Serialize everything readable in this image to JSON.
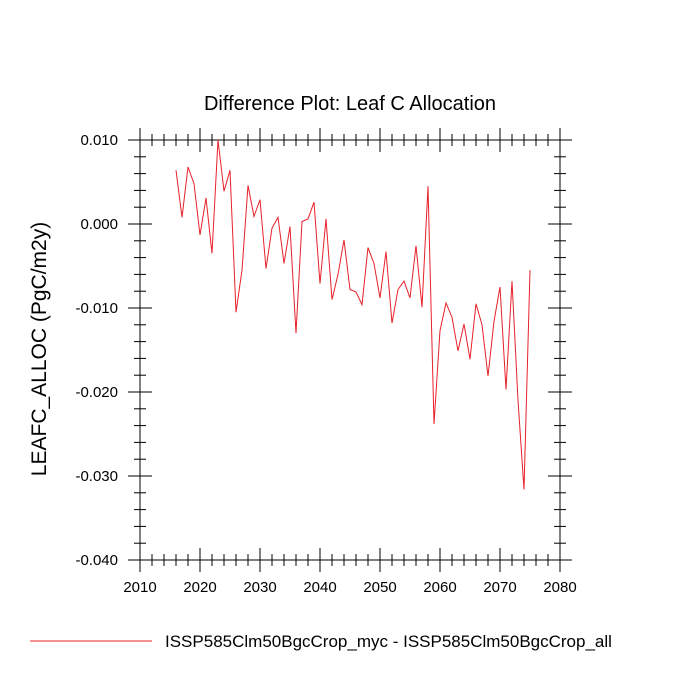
{
  "chart_data": {
    "type": "line",
    "title": "Difference Plot: Leaf C Allocation",
    "xlabel": "",
    "ylabel": "LEAFC_ALLOC  (PgC/m2y)",
    "xlim": [
      2010,
      2080
    ],
    "ylim": [
      -0.04,
      0.01
    ],
    "x_ticks": [
      2010,
      2020,
      2030,
      2040,
      2050,
      2060,
      2070,
      2080
    ],
    "x_tick_labels": [
      "2010",
      "2020",
      "2030",
      "2040",
      "2050",
      "2060",
      "2070",
      "2080"
    ],
    "y_ticks": [
      -0.04,
      -0.03,
      -0.02,
      -0.01,
      0.0,
      0.01
    ],
    "y_tick_labels": [
      "-0.040",
      "-0.030",
      "-0.020",
      "-0.010",
      "0.000",
      "0.010"
    ],
    "grid": false,
    "legend_position": "bottom",
    "series": [
      {
        "name": "ISSP585Clm50BgcCrop_myc - ISSP585Clm50BgcCrop_all",
        "color": "#e8202a",
        "x": [
          2016,
          2017,
          2018,
          2019,
          2020,
          2021,
          2022,
          2023,
          2024,
          2025,
          2026,
          2027,
          2028,
          2029,
          2030,
          2031,
          2032,
          2033,
          2034,
          2035,
          2036,
          2037,
          2038,
          2039,
          2040,
          2041,
          2042,
          2043,
          2044,
          2045,
          2046,
          2047,
          2048,
          2049,
          2050,
          2051,
          2052,
          2053,
          2054,
          2055,
          2056,
          2057,
          2058,
          2059,
          2060,
          2061,
          2062,
          2063,
          2064,
          2065,
          2066,
          2067,
          2068,
          2069,
          2070,
          2071,
          2072,
          2073,
          2074,
          2075
        ],
        "y": [
          0.0064,
          0.0008,
          0.0068,
          0.0048,
          -0.0013,
          0.0031,
          -0.0035,
          0.01,
          0.0039,
          0.0064,
          -0.0105,
          -0.0055,
          0.0046,
          0.0009,
          0.0029,
          -0.0053,
          -0.0005,
          0.0008,
          -0.0047,
          -0.0003,
          -0.013,
          0.0003,
          0.0006,
          0.0026,
          -0.0071,
          0.0006,
          -0.009,
          -0.006,
          -0.0019,
          -0.0078,
          -0.0081,
          -0.0096,
          -0.0028,
          -0.0047,
          -0.0088,
          -0.0033,
          -0.0118,
          -0.0078,
          -0.0068,
          -0.0088,
          -0.0026,
          -0.0099,
          0.0045,
          -0.0238,
          -0.0127,
          -0.0094,
          -0.0111,
          -0.0151,
          -0.0119,
          -0.0161,
          -0.0095,
          -0.012,
          -0.0181,
          -0.0116,
          -0.0075,
          -0.0197,
          -0.0068,
          -0.021,
          -0.0316,
          -0.0055
        ]
      }
    ]
  }
}
